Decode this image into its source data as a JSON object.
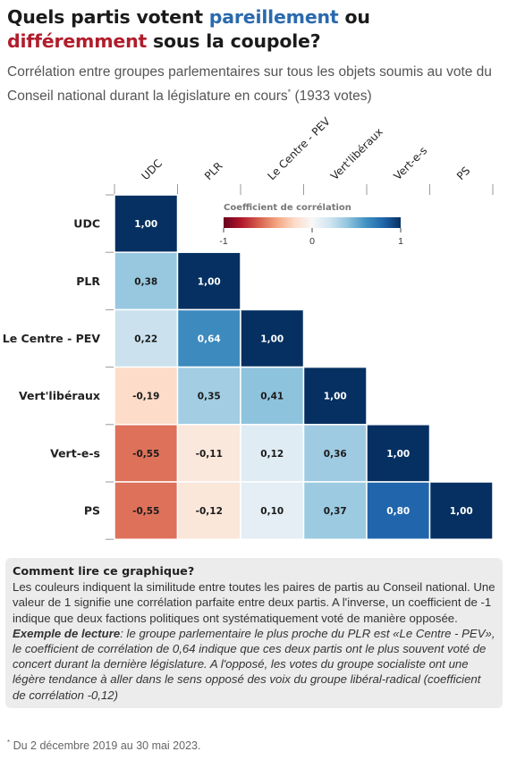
{
  "title": {
    "part1": "Quels partis votent ",
    "word_same": "pareillement",
    "part2": " ou ",
    "word_diff": "différemment",
    "part3": " sous la coupole?",
    "color_same": "#2a6aad",
    "color_diff": "#b01d2c"
  },
  "subtitle": {
    "text": "Corrélation entre groupes parlementaires sur tous les objets soumis au vote du Conseil national durant la législature en cours",
    "marker": "*",
    "suffix": " (1933 votes)"
  },
  "chart_data": {
    "type": "heatmap",
    "parties": [
      "UDC",
      "PLR",
      "Le Centre - PEV",
      "Vert'libéraux",
      "Vert-e-s",
      "PS"
    ],
    "matrix": [
      [
        1.0,
        null,
        null,
        null,
        null,
        null
      ],
      [
        0.38,
        1.0,
        null,
        null,
        null,
        null
      ],
      [
        0.22,
        0.64,
        1.0,
        null,
        null,
        null
      ],
      [
        -0.19,
        0.35,
        0.41,
        1.0,
        null,
        null
      ],
      [
        -0.55,
        -0.11,
        0.12,
        0.36,
        1.0,
        null
      ],
      [
        -0.55,
        -0.12,
        0.1,
        0.37,
        0.8,
        1.0
      ]
    ],
    "legend": {
      "title": "Coefficient de corrélation",
      "min_label": "-1",
      "mid_label": "0",
      "max_label": "1",
      "colors": [
        "#67001f",
        "#b2182b",
        "#d6604d",
        "#f4a582",
        "#fddbc7",
        "#f7f7f7",
        "#d1e5f0",
        "#92c5de",
        "#4393c3",
        "#2166ac",
        "#053061"
      ]
    }
  },
  "note": {
    "heading": "Comment lire ce graphique?",
    "body": "Les couleurs indiquent la similitude entre toutes les paires de partis au Conseil national. Une valeur de 1 signifie une corrélation parfaite entre deux partis. A l'inverse, un coefficient de -1 indique que deux factions politiques ont systématiquement voté de manière opposée.",
    "example_label": "Exemple de lecture",
    "example_text": ": le groupe parlementaire le plus proche du PLR est «Le Centre - PEV», le coefficient de corrélation de 0,64 indique que ces deux partis ont le plus souvent voté de concert durant la dernière législature. A l'opposé, les votes du groupe socialiste ont une légère tendance à aller dans le sens opposé des voix du groupe libéral-radical (coefficient de corrélation -0,12)"
  },
  "footnote": {
    "marker": "*",
    "text": " Du 2 décembre 2019 au 30 mai 2023."
  }
}
